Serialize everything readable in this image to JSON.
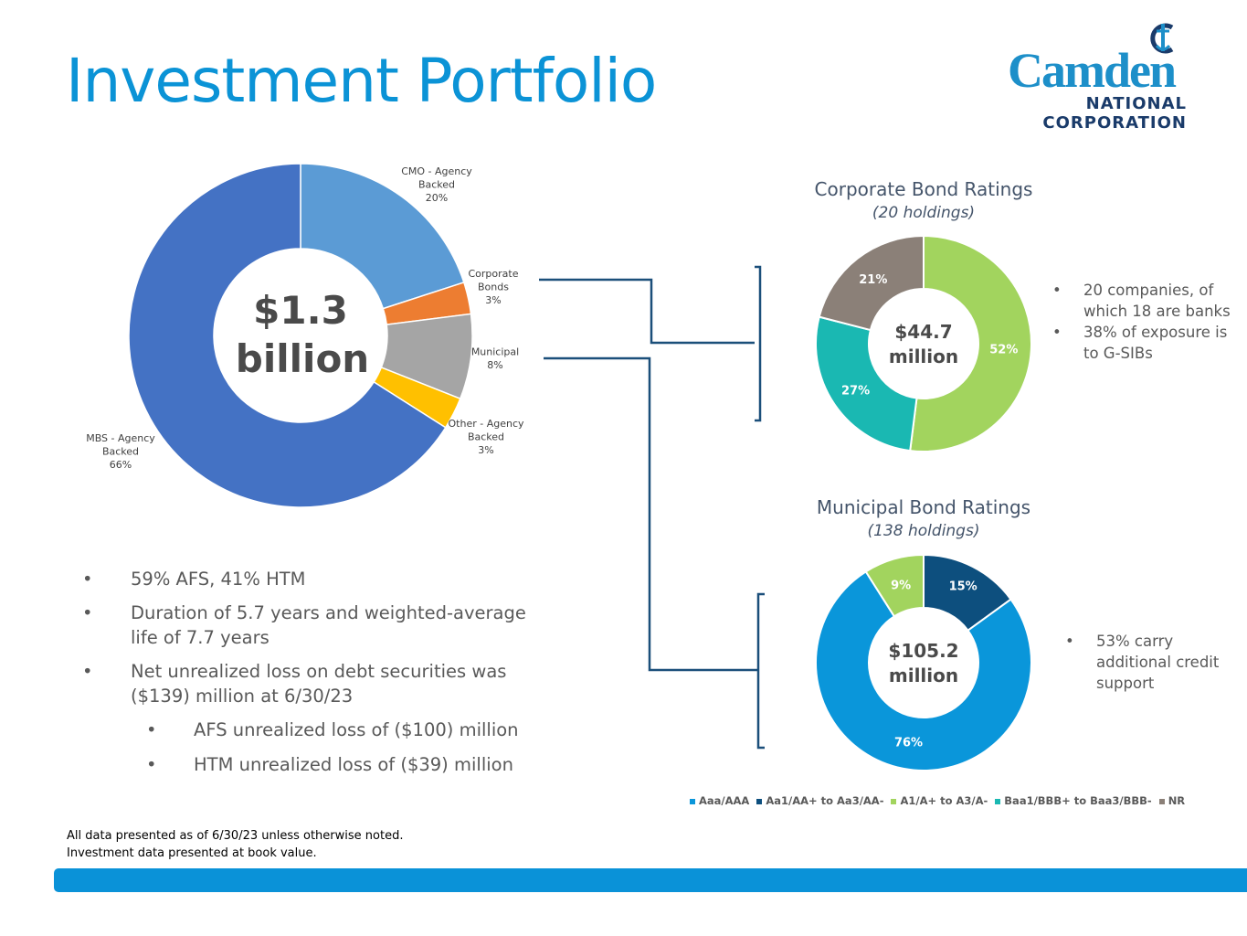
{
  "header": {
    "title": "Investment Portfolio"
  },
  "logo": {
    "word": "Camden",
    "line2": "NATIONAL",
    "line3": "CORPORATION"
  },
  "colors": {
    "title": "#0b93d6",
    "bar": "#0a92d8",
    "connector": "#1b4f7a"
  },
  "chart_data": [
    {
      "type": "pie",
      "donut": true,
      "center_label": [
        "$1.3",
        "billion"
      ],
      "slices": [
        {
          "label": [
            "CMO - Agency",
            "Backed",
            "20%"
          ],
          "value": 20,
          "color": "#5b9bd5"
        },
        {
          "label": [
            "Corporate",
            "Bonds",
            "3%"
          ],
          "value": 3,
          "color": "#ed7d31"
        },
        {
          "label": [
            "Municipal",
            "8%"
          ],
          "value": 8,
          "color": "#a5a5a5"
        },
        {
          "label": [
            "Other - Agency",
            "Backed",
            "3%"
          ],
          "value": 3,
          "color": "#ffc000"
        },
        {
          "label": [
            "MBS - Agency",
            "Backed",
            "66%"
          ],
          "value": 66,
          "color": "#4472c4"
        }
      ]
    },
    {
      "type": "pie",
      "donut": true,
      "title": "Corporate Bond Ratings",
      "subtitle": "(20 holdings)",
      "center_label": [
        "$44.7",
        "million"
      ],
      "slices": [
        {
          "category": "A1/A+ to A3/A-",
          "value": 52,
          "label": "52%",
          "color": "#a2d45e"
        },
        {
          "category": "Baa1/BBB+ to Baa3/BBB-",
          "value": 27,
          "label": "27%",
          "color": "#1ab8b2"
        },
        {
          "category": "NR",
          "value": 21,
          "label": "21%",
          "color": "#8b8078"
        }
      ]
    },
    {
      "type": "pie",
      "donut": true,
      "title": "Municipal Bond Ratings",
      "subtitle": "(138 holdings)",
      "center_label": [
        "$105.2",
        "million"
      ],
      "slices": [
        {
          "category": "Aa1/AA+ to Aa3/AA-",
          "value": 15,
          "label": "15%",
          "color": "#0d4f7e"
        },
        {
          "category": "Aaa/AAA",
          "value": 76,
          "label": "76%",
          "color": "#0a96da"
        },
        {
          "category": "A1/A+ to A3/A-",
          "value": 9,
          "label": "9%",
          "color": "#a2d45e"
        }
      ],
      "legend": [
        {
          "label": "Aaa/AAA",
          "color": "#0a96da"
        },
        {
          "label": "Aa1/AA+ to Aa3/AA-",
          "color": "#0d4f7e"
        },
        {
          "label": "A1/A+ to A3/A-",
          "color": "#a2d45e"
        },
        {
          "label": "Baa1/BBB+ to Baa3/BBB-",
          "color": "#1ab8b2"
        },
        {
          "label": "NR",
          "color": "#8b8078"
        }
      ],
      "legend_position": "bottom"
    }
  ],
  "bullets": [
    {
      "text": "59% AFS, 41% HTM",
      "level": 1
    },
    {
      "text": "Duration of 5.7 years and weighted-average life of 7.7 years",
      "level": 1
    },
    {
      "text": "Net unrealized loss on debt securities was ($139) million at 6/30/23",
      "level": 1
    },
    {
      "text": "AFS unrealized loss of ($100) million",
      "level": 2
    },
    {
      "text": "HTM unrealized loss of ($39) million",
      "level": 2
    }
  ],
  "corporate_notes": [
    "20 companies, of which 18 are banks",
    "38% of exposure is to G-SIBs"
  ],
  "municipal_notes": [
    "53% carry additional credit support"
  ],
  "bullet_char": "•",
  "footnote": [
    "All data presented as of 6/30/23 unless otherwise noted.",
    "Investment data presented at book value."
  ]
}
